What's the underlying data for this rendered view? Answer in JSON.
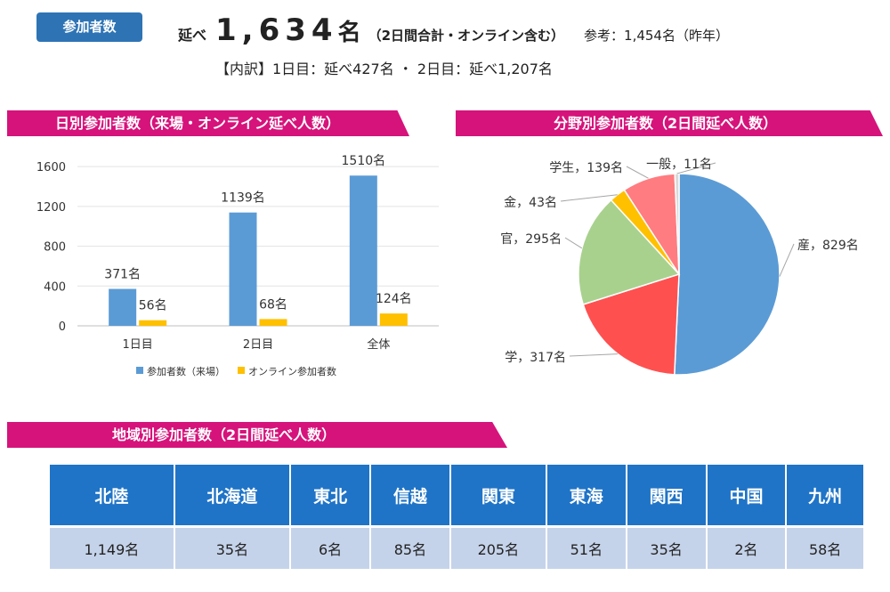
{
  "header": {
    "badge": "参加者数",
    "prefix": "延べ",
    "total": "1,634",
    "unit": "名",
    "note": "（2日間合計・オンライン含む）",
    "reference": "参考：1,454名（昨年）",
    "breakdown": "【内訳】1日目：延べ427名 ・ 2日目：延べ1,207名"
  },
  "sections": {
    "daily": "日別参加者数（来場・オンライン延べ人数）",
    "field": "分野別参加者数（2日間延べ人数）",
    "region": "地域別参加者数（2日間延べ人数）"
  },
  "chart_data": [
    {
      "type": "bar",
      "categories": [
        "1日目",
        "2日目",
        "全体"
      ],
      "series": [
        {
          "name": "参加者数（来場）",
          "values": [
            371,
            1139,
            1510
          ],
          "labels": [
            "371名",
            "1139名",
            "1510名"
          ],
          "color": "#5b9bd5"
        },
        {
          "name": "オンライン参加者数",
          "values": [
            56,
            68,
            124
          ],
          "labels": [
            "56名",
            "68名",
            "124名"
          ],
          "color": "#ffc000"
        }
      ],
      "yticks": [
        0,
        400,
        800,
        1200,
        1600
      ],
      "ylim": [
        0,
        1700
      ],
      "grid": true,
      "legend": "bottom"
    },
    {
      "type": "pie",
      "labels": [
        "産",
        "学",
        "官",
        "金",
        "学生",
        "一般"
      ],
      "values": [
        829,
        317,
        295,
        43,
        139,
        11
      ],
      "display": [
        "産，829名",
        "学，317名",
        "官，295名",
        "金，43名",
        "学生，139名",
        "一般，11名"
      ],
      "colors": [
        "#5b9bd5",
        "#ff5050",
        "#a9d18e",
        "#ffc000",
        "#ff7c80",
        "#d9d9d9"
      ]
    },
    {
      "type": "table",
      "columns": [
        "北陸",
        "北海道",
        "東北",
        "信越",
        "関東",
        "東海",
        "関西",
        "中国",
        "九州"
      ],
      "values": [
        "1,149名",
        "35名",
        "6名",
        "85名",
        "205名",
        "51名",
        "35名",
        "2名",
        "58名"
      ]
    }
  ]
}
